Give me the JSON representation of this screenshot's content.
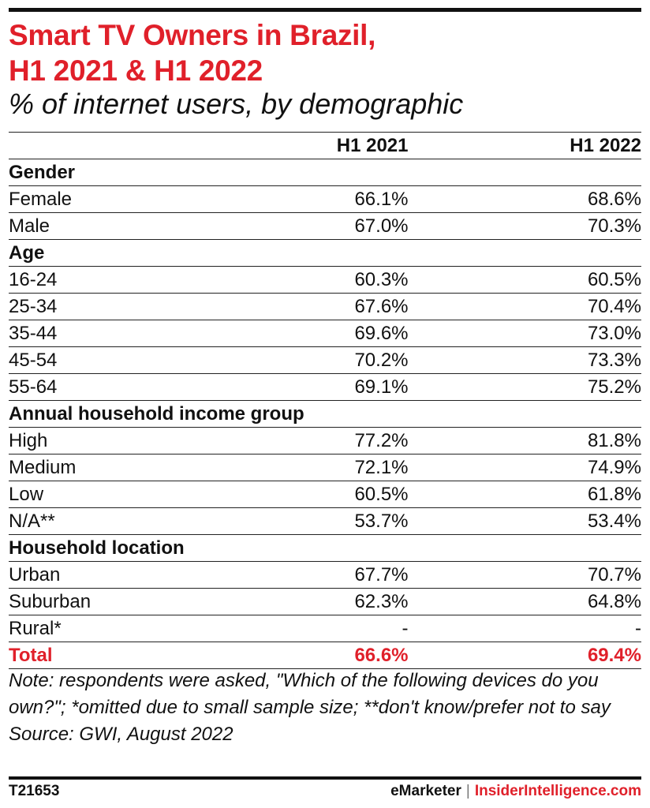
{
  "title_line1": "Smart TV Owners in Brazil,",
  "title_line2": "H1 2021 & H1 2022",
  "subtitle": "% of internet users, by demographic",
  "chart_data": {
    "type": "table",
    "columns": [
      "",
      "H1 2021",
      "H1 2022"
    ],
    "groups": [
      {
        "name": "Gender",
        "rows": [
          {
            "label": "Female",
            "h1_2021": "66.1%",
            "h1_2022": "68.6%"
          },
          {
            "label": "Male",
            "h1_2021": "67.0%",
            "h1_2022": "70.3%"
          }
        ]
      },
      {
        "name": "Age",
        "rows": [
          {
            "label": "16-24",
            "h1_2021": "60.3%",
            "h1_2022": "60.5%"
          },
          {
            "label": "25-34",
            "h1_2021": "67.6%",
            "h1_2022": "70.4%"
          },
          {
            "label": "35-44",
            "h1_2021": "69.6%",
            "h1_2022": "73.0%"
          },
          {
            "label": "45-54",
            "h1_2021": "70.2%",
            "h1_2022": "73.3%"
          },
          {
            "label": "55-64",
            "h1_2021": "69.1%",
            "h1_2022": "75.2%"
          }
        ]
      },
      {
        "name": "Annual household income group",
        "rows": [
          {
            "label": "High",
            "h1_2021": "77.2%",
            "h1_2022": "81.8%"
          },
          {
            "label": "Medium",
            "h1_2021": "72.1%",
            "h1_2022": "74.9%"
          },
          {
            "label": "Low",
            "h1_2021": "60.5%",
            "h1_2022": "61.8%"
          },
          {
            "label": "N/A**",
            "h1_2021": "53.7%",
            "h1_2022": "53.4%"
          }
        ]
      },
      {
        "name": "Household location",
        "rows": [
          {
            "label": "Urban",
            "h1_2021": "67.7%",
            "h1_2022": "70.7%"
          },
          {
            "label": "Suburban",
            "h1_2021": "62.3%",
            "h1_2022": "64.8%"
          },
          {
            "label": "Rural*",
            "h1_2021": "-",
            "h1_2022": "-"
          }
        ]
      }
    ],
    "total": {
      "label": "Total",
      "h1_2021": "66.6%",
      "h1_2022": "69.4%"
    }
  },
  "note": "Note: respondents were asked, \"Which of the following devices do you own?\"; *omitted due to small sample size; **don't know/prefer not to say",
  "source": "Source: GWI, August 2022",
  "footer": {
    "id": "T21653",
    "brand_left": "eMarketer",
    "brand_sep": "|",
    "brand_right": "InsiderIntelligence.com"
  },
  "colors": {
    "accent": "#e0202a",
    "text": "#111111"
  }
}
